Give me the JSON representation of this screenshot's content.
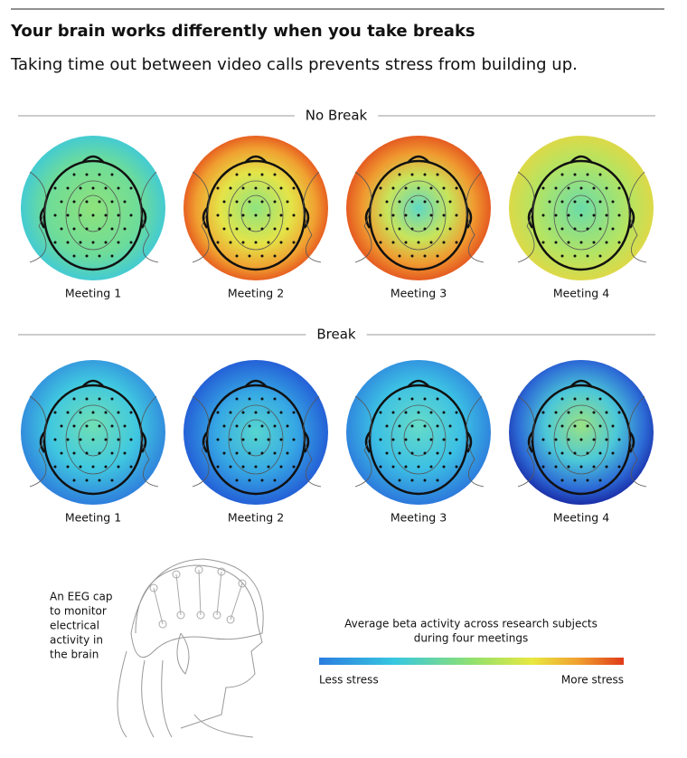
{
  "header": {
    "title": "Your brain works differently when you take breaks",
    "subtitle": "Taking time out between video calls prevents stress from building up."
  },
  "sections": [
    {
      "label": "No Break",
      "maps": [
        "Meeting 1",
        "Meeting 2",
        "Meeting 3",
        "Meeting 4"
      ]
    },
    {
      "label": "Break",
      "maps": [
        "Meeting 1",
        "Meeting 2",
        "Meeting 3",
        "Meeting 4"
      ]
    }
  ],
  "caption": [
    "An EEG cap",
    "to monitor",
    "electrical",
    "activity in",
    "the brain"
  ],
  "legend": {
    "title": [
      "Average beta activity across research subjects",
      "during four meetings"
    ],
    "low": "Less stress",
    "high": "More stress"
  }
}
